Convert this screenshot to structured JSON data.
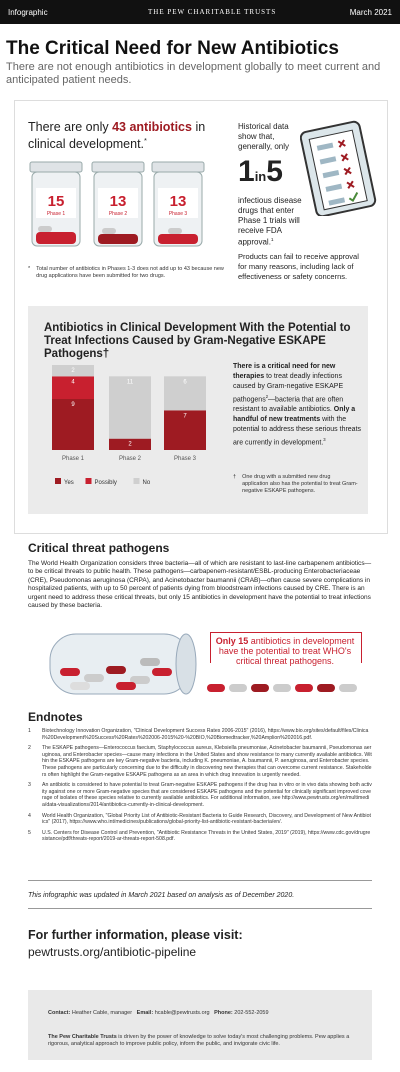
{
  "header": {
    "label": "Infographic",
    "org": "THE PEW CHARITABLE TRUSTS",
    "date": "March 2021"
  },
  "title": "The Critical Need for New Antibiotics",
  "subtitle": "There are not enough antibiotics in development globally to meet current and anticipated patient needs.",
  "intro": {
    "parts": [
      "There are only ",
      "43 antibiotics",
      " in clinical development."
    ],
    "mark": "*"
  },
  "jars": [
    {
      "count": 15,
      "phase": "Phase 1"
    },
    {
      "count": 13,
      "phase": "Phase 2"
    },
    {
      "count": 13,
      "phase": "Phase 3"
    }
  ],
  "footnote": {
    "mark": "*",
    "text": "Total number of antibiotics in Phases 1-3 does not add up to 43 because new drug applications have been submitted for two drugs."
  },
  "stat": {
    "lead": "Historical data show that, generally, only",
    "big1": "1",
    "in": "in",
    "big2": "5",
    "rest": "infectious disease drugs that enter Phase 1 trials will receive FDA approval.",
    "ref": "1"
  },
  "stat_note": "Products can fail to receive approval for many reasons, including lack of effectiveness or safety concerns.",
  "chart_data": {
    "type": "stacked_bar",
    "title": "Antibiotics in Clinical Development With the Potential to Treat Infections Caused by Gram-Negative ESKAPE Pathogens†",
    "categories": [
      "Phase 1",
      "Phase 2",
      "Phase 3"
    ],
    "series": [
      {
        "name": "Yes",
        "color": "#9e1b22",
        "values": [
          9,
          2,
          7
        ]
      },
      {
        "name": "Possibly",
        "color": "#c8202f",
        "values": [
          4,
          0,
          0
        ]
      },
      {
        "name": "No",
        "color": "#cfcfcf",
        "values": [
          2,
          11,
          6
        ]
      }
    ],
    "legend": "bottom"
  },
  "chart_note": {
    "parts": [
      "There is a critical need for new therapies",
      " to treat deadly infections caused by Gram-negative ESKAPE pathogens",
      "2",
      "—bacteria that are often resistant to available antibiotics. ",
      "Only a handful of new treatments",
      " with the potential to address these serious threats are currently in development.",
      "3"
    ]
  },
  "chart_footnote": {
    "mark": "†",
    "text": "One drug with a submitted new drug application also has the potential to treat Gram-negative ESKAPE pathogens."
  },
  "section": {
    "heading": "Critical threat pathogens",
    "paragraph": "The World Health Organization considers three bacteria—all of which are resistant to last-line carbapenem antibiotics—to be critical threats to public health. These pathogens—carbapenem-resistant/ESBL-producing Enterobacteriaceae (CRE), Pseudomonas aeruginosa (CRPA), and Acinetobacter baumannii (CRAB)—often cause severe complications in hospitalized patients, with up to 50 percent of patients dying from bloodstream infections caused by CRE. There is an urgent need to address these critical threats, but only 15 antibiotics in development have the potential to treat infections caused by these bacteria."
  },
  "callout": {
    "parts": [
      "Only 15",
      " antibiotics in development have the potential to treat WHO's critical threat pathogens."
    ]
  },
  "endnotes": {
    "heading": "Endnotes",
    "items": [
      {
        "n": "1",
        "text": "Biotechnology Innovation Organization, \"Clinical Development Success Rates 2006-2015\" (2016), https://www.bio.org/sites/default/files/Clinical%20Development%20Success%20Rates%202006-2015%20-%20BIO,%20Biomedtracker,%20Amplion%202016.pdf."
      },
      {
        "n": "2",
        "text": "The ESKAPE pathogens—Enterococcus faecium, Staphylococcus aureus, Klebsiella pneumoniae, Acinetobacter baumannii, Pseudomonas aeruginosa, and Enterobacter species—cause many infections in the United States and show resistance to many currently available antibiotics. Within the ESKAPE pathogens are key Gram-negative bacteria, including K. pneumoniae, A. baumannii, P. aeruginosa, and Enterobacter species. These pathogens are particularly concerning due to the difficulty in discovering new therapies that can overcome current resistance. Stakeholders often highlight the Gram-negative ESKAPE pathogens as an area in which drug innovation is urgently needed."
      },
      {
        "n": "3",
        "text": "An antibiotic is considered to have potential to treat Gram-negative ESKAPE pathogens if the drug has in vitro or in vivo data showing both activity against one or more Gram-negative species that are considered ESKAPE pathogens and the potential for clinically significant improved coverage of isolates of these species relative to currently available antibiotics. For additional information, see http://www.pewtrusts.org/en/multimedia/data-visualizations/2014/antibiotics-currently-in-clinical-development."
      },
      {
        "n": "4",
        "text": "World Health Organization, \"Global Priority List of Antibiotic-Resistant Bacteria to Guide Research, Discovery, and Development of New Antibiotics\" (2017), https://www.who.int/medicines/publications/global-priority-list-antibiotic-resistant-bacteria/en/."
      },
      {
        "n": "5",
        "text": "U.S. Centers for Disease Control and Prevention, \"Antibiotic Resistance Threats in the United States, 2019\" (2019), https://www.cdc.gov/drugresistance/pdf/threats-report/2019-ar-threats-report-508.pdf."
      }
    ]
  },
  "update_note": "This infographic was updated in March 2021 based on analysis as of December 2020.",
  "further": {
    "heading": "For further information, please visit:",
    "url": "pewtrusts.org/antibiotic-pipeline"
  },
  "footer": {
    "contact_label": "Contact:",
    "contact": "Heather Cable, manager",
    "email_label": "Email:",
    "email": "hcable@pewtrusts.org",
    "phone_label": "Phone:",
    "phone": "202-552-2059",
    "about_bold": "The Pew Charitable Trusts",
    "about": " is driven by the power of knowledge to solve today's most challenging problems. Pew applies a rigorous, analytical approach to improve public policy, inform the public, and invigorate civic life."
  }
}
